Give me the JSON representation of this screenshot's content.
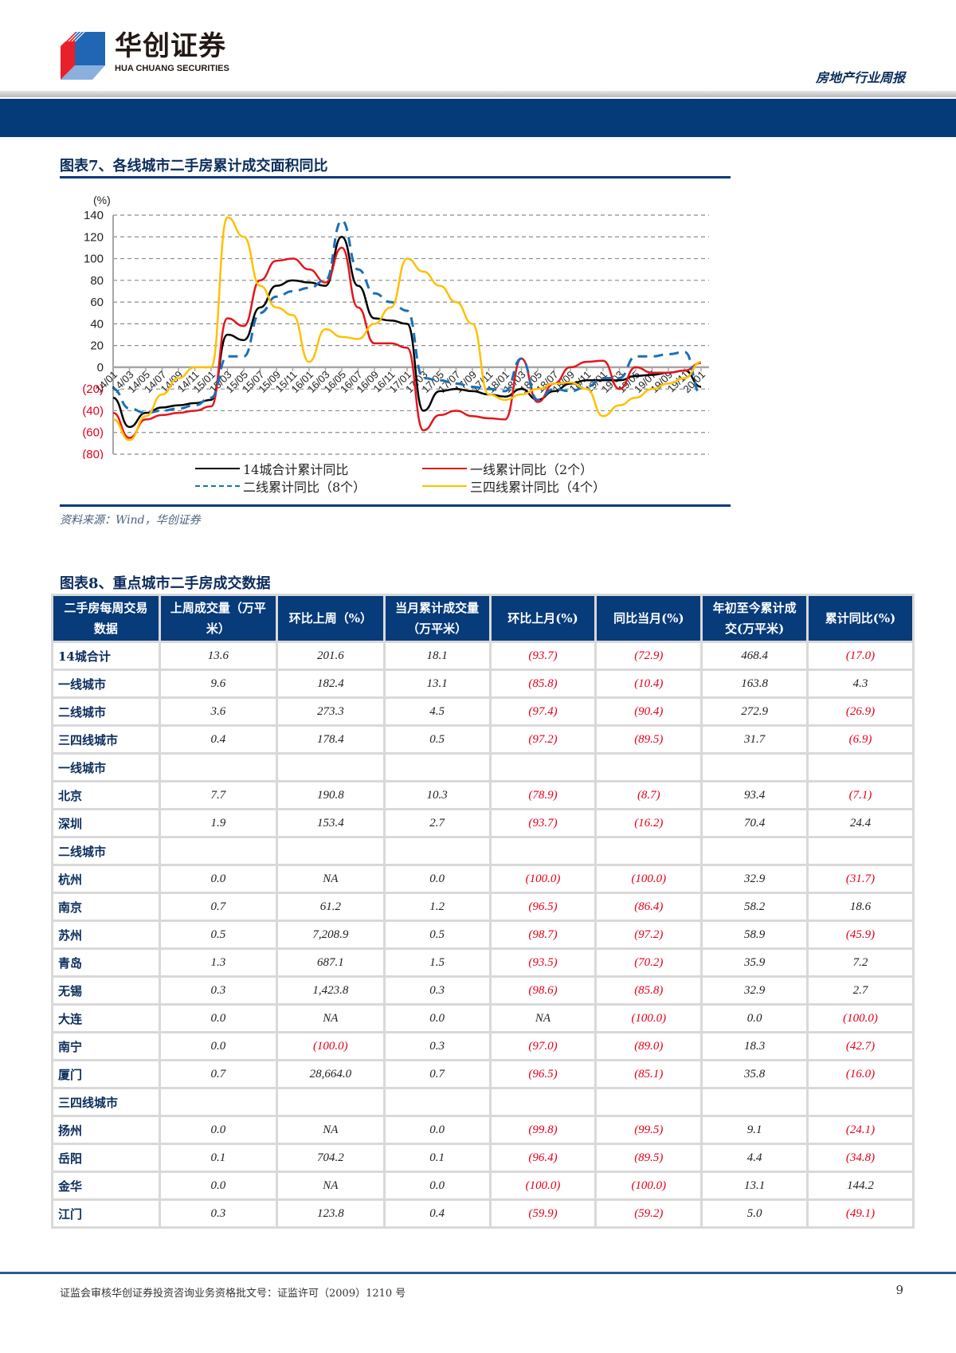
{
  "header": {
    "logo_cn": "华创证券",
    "logo_en": "HUA CHUANG SECURITIES",
    "report_type": "房地产行业周报"
  },
  "figure7": {
    "title": "图表7、各线城市二手房累计成交面积同比",
    "source": "资料来源：Wind，华创证券"
  },
  "chart_data": {
    "type": "line",
    "title": "图表7、各线城市二手房累计成交面积同比",
    "ylabel": "(%)",
    "xlabel": "",
    "ylim": [
      -80,
      140
    ],
    "yticks": [
      "140",
      "120",
      "100",
      "80",
      "60",
      "40",
      "20",
      "0",
      "(20)",
      "(40)",
      "(60)",
      "(80)"
    ],
    "grid": true,
    "legend_position": "bottom",
    "x": [
      "14/01",
      "14/03",
      "14/05",
      "14/07",
      "14/09",
      "14/11",
      "15/01",
      "15/03",
      "15/05",
      "15/07",
      "15/09",
      "15/11",
      "16/01",
      "16/03",
      "16/05",
      "16/07",
      "16/09",
      "16/11",
      "17/01",
      "17/03",
      "17/05",
      "17/07",
      "17/09",
      "17/11",
      "18/01",
      "18/03",
      "18/05",
      "18/07",
      "18/09",
      "18/11",
      "19/01",
      "19/03",
      "19/05",
      "19/07",
      "19/09",
      "19/11",
      "20/01"
    ],
    "series": [
      {
        "name": "14城合计累计同比",
        "color": "#000000",
        "style": "solid",
        "values": [
          -28,
          -55,
          -42,
          -37,
          -35,
          -33,
          -30,
          30,
          25,
          55,
          75,
          80,
          78,
          75,
          120,
          75,
          45,
          43,
          40,
          -40,
          -22,
          -20,
          -22,
          -25,
          -27,
          -20,
          -30,
          -22,
          -15,
          -12,
          -12,
          -12,
          -8,
          -7,
          -5,
          -3,
          -18
        ]
      },
      {
        "name": "一线累计同比（2个）",
        "color": "#e3161b",
        "style": "solid",
        "values": [
          -42,
          -65,
          -48,
          -44,
          -42,
          -40,
          -36,
          45,
          38,
          80,
          98,
          100,
          90,
          78,
          110,
          55,
          22,
          22,
          18,
          -58,
          -44,
          -40,
          -45,
          -47,
          -48,
          8,
          -32,
          -15,
          0,
          5,
          6,
          -20,
          0,
          -5,
          -5,
          -3,
          4
        ]
      },
      {
        "name": "二线累计同比（8个）",
        "color": "#1a6fb4",
        "style": "dashed",
        "values": [
          -20,
          -38,
          -42,
          -40,
          -38,
          -35,
          -28,
          10,
          10,
          50,
          65,
          70,
          73,
          80,
          135,
          90,
          68,
          60,
          52,
          -10,
          -12,
          -15,
          -18,
          -20,
          -22,
          8,
          -30,
          -20,
          -22,
          -18,
          -10,
          -10,
          10,
          10,
          12,
          14,
          -25
        ]
      },
      {
        "name": "三四线累计同比（4个）",
        "color": "#ffc000",
        "style": "solid",
        "values": [
          -48,
          -67,
          -45,
          -25,
          -10,
          0,
          0,
          138,
          120,
          75,
          55,
          48,
          5,
          35,
          28,
          26,
          40,
          55,
          100,
          88,
          75,
          60,
          40,
          -25,
          -30,
          -25,
          -20,
          -15,
          -14,
          -20,
          -45,
          -35,
          -28,
          -20,
          -15,
          -10,
          5
        ]
      }
    ]
  },
  "figure8": {
    "title": "图表8、重点城市二手房成交数据",
    "columns": [
      "二手房每周交易数据",
      "上周成交量（万平米）",
      "环比上周（%）",
      "当月累计成交量（万平米）",
      "环比上月(%)",
      "同比当月(%)",
      "年初至今累计成交(万平米)",
      "累计同比(%)"
    ],
    "rows": [
      {
        "name": "14城合计",
        "values": [
          "13.6",
          "201.6",
          "18.1",
          "(93.7)",
          "(72.9)",
          "468.4",
          "(17.0)"
        ]
      },
      {
        "name": "一线城市",
        "values": [
          "9.6",
          "182.4",
          "13.1",
          "(85.8)",
          "(10.4)",
          "163.8",
          "4.3"
        ]
      },
      {
        "name": "二线城市",
        "values": [
          "3.6",
          "273.3",
          "4.5",
          "(97.4)",
          "(90.4)",
          "272.9",
          "(26.9)"
        ]
      },
      {
        "name": "三四线城市",
        "values": [
          "0.4",
          "178.4",
          "0.5",
          "(97.2)",
          "(89.5)",
          "31.7",
          "(6.9)"
        ]
      },
      {
        "name": "一线城市",
        "values": [
          "",
          "",
          "",
          "",
          "",
          "",
          ""
        ]
      },
      {
        "name": "北京",
        "values": [
          "7.7",
          "190.8",
          "10.3",
          "(78.9)",
          "(8.7)",
          "93.4",
          "(7.1)"
        ]
      },
      {
        "name": "深圳",
        "values": [
          "1.9",
          "153.4",
          "2.7",
          "(93.7)",
          "(16.2)",
          "70.4",
          "24.4"
        ]
      },
      {
        "name": "二线城市",
        "values": [
          "",
          "",
          "",
          "",
          "",
          "",
          ""
        ]
      },
      {
        "name": "杭州",
        "values": [
          "0.0",
          "NA",
          "0.0",
          "(100.0)",
          "(100.0)",
          "32.9",
          "(31.7)"
        ]
      },
      {
        "name": "南京",
        "values": [
          "0.7",
          "61.2",
          "1.2",
          "(96.5)",
          "(86.4)",
          "58.2",
          "18.6"
        ]
      },
      {
        "name": "苏州",
        "values": [
          "0.5",
          "7,208.9",
          "0.5",
          "(98.7)",
          "(97.2)",
          "58.9",
          "(45.9)"
        ]
      },
      {
        "name": "青岛",
        "values": [
          "1.3",
          "687.1",
          "1.5",
          "(93.5)",
          "(70.2)",
          "35.9",
          "7.2"
        ]
      },
      {
        "name": "无锡",
        "values": [
          "0.3",
          "1,423.8",
          "0.3",
          "(98.6)",
          "(85.8)",
          "32.9",
          "2.7"
        ]
      },
      {
        "name": "大连",
        "values": [
          "0.0",
          "NA",
          "0.0",
          "NA",
          "(100.0)",
          "0.0",
          "(100.0)"
        ]
      },
      {
        "name": "南宁",
        "values": [
          "0.0",
          "(100.0)",
          "0.3",
          "(97.0)",
          "(89.0)",
          "18.3",
          "(42.7)"
        ]
      },
      {
        "name": "厦门",
        "values": [
          "0.7",
          "28,664.0",
          "0.7",
          "(96.5)",
          "(85.1)",
          "35.8",
          "(16.0)"
        ]
      },
      {
        "name": "三四线城市",
        "values": [
          "",
          "",
          "",
          "",
          "",
          "",
          ""
        ]
      },
      {
        "name": "扬州",
        "values": [
          "0.0",
          "NA",
          "0.0",
          "(99.8)",
          "(99.5)",
          "9.1",
          "(24.1)"
        ]
      },
      {
        "name": "岳阳",
        "values": [
          "0.1",
          "704.2",
          "0.1",
          "(96.4)",
          "(89.5)",
          "4.4",
          "(34.8)"
        ]
      },
      {
        "name": "金华",
        "values": [
          "0.0",
          "NA",
          "0.0",
          "(100.0)",
          "(100.0)",
          "13.1",
          "144.2"
        ]
      },
      {
        "name": "江门",
        "values": [
          "0.3",
          "123.8",
          "0.4",
          "(59.9)",
          "(59.2)",
          "5.0",
          "(49.1)"
        ]
      }
    ]
  },
  "footer": {
    "text": "证监会审核华创证券投资咨询业务资格批文号：证监许可（2009）1210 号",
    "page_number": "9"
  },
  "colors": {
    "navy": "#063b7a",
    "negative": "#e3001b",
    "heading": "#0b2c5c"
  }
}
